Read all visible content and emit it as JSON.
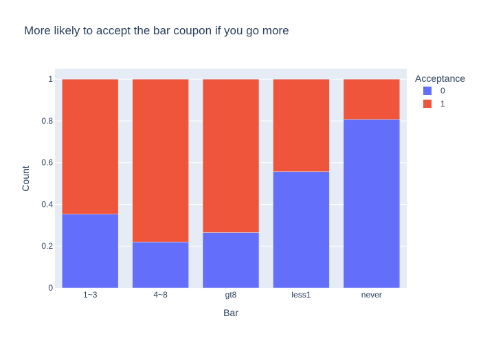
{
  "chart_data": {
    "type": "bar",
    "stacked": true,
    "title": "More likely to accept the bar coupon if you go more",
    "xlabel": "Bar",
    "ylabel": "Count",
    "categories": [
      "1~3",
      "4~8",
      "gt8",
      "less1",
      "never"
    ],
    "ylim": [
      0,
      1.05
    ],
    "yticks": [
      0,
      0.2,
      0.4,
      0.6,
      0.8,
      1
    ],
    "ytick_labels": [
      "0",
      "0.2",
      "0.4",
      "0.6",
      "0.8",
      "1"
    ],
    "grid": true,
    "legend": {
      "title": "Acceptance",
      "placement": "right"
    },
    "series": [
      {
        "name": "0",
        "color": "#636efa",
        "values": [
          0.353,
          0.22,
          0.265,
          0.557,
          0.807
        ]
      },
      {
        "name": "1",
        "color": "#ef553b",
        "values": [
          0.647,
          0.78,
          0.735,
          0.443,
          0.193
        ]
      }
    ],
    "plot_background": "#e5ecf6"
  }
}
